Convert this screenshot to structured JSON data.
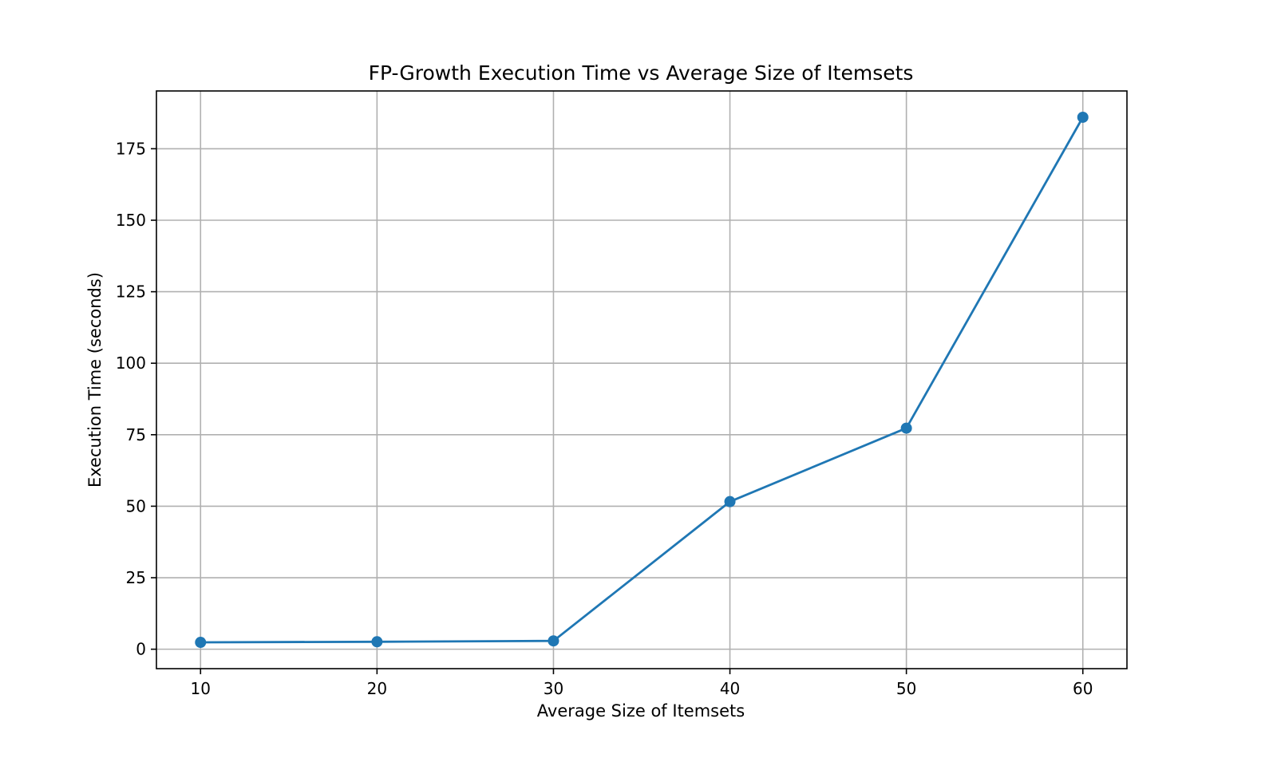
{
  "chart_data": {
    "type": "line",
    "title": "FP-Growth Execution Time vs Average Size of Itemsets",
    "xlabel": "Average Size of Itemsets",
    "ylabel": "Execution Time (seconds)",
    "x": [
      10,
      20,
      30,
      40,
      50,
      60
    ],
    "series": [
      {
        "values": [
          2.4,
          2.6,
          2.9,
          51.6,
          77.3,
          186.0
        ]
      }
    ],
    "xlim": [
      7.5,
      62.5
    ],
    "ylim": [
      -6.8,
      195.2
    ],
    "xticks": [
      10,
      20,
      30,
      40,
      50,
      60
    ],
    "yticks": [
      0,
      25,
      50,
      75,
      100,
      125,
      150,
      175
    ],
    "grid": true,
    "marker": "circle",
    "colors": {
      "line": "#1f77b4",
      "grid": "#b0b0b0",
      "frame": "#000000"
    }
  }
}
